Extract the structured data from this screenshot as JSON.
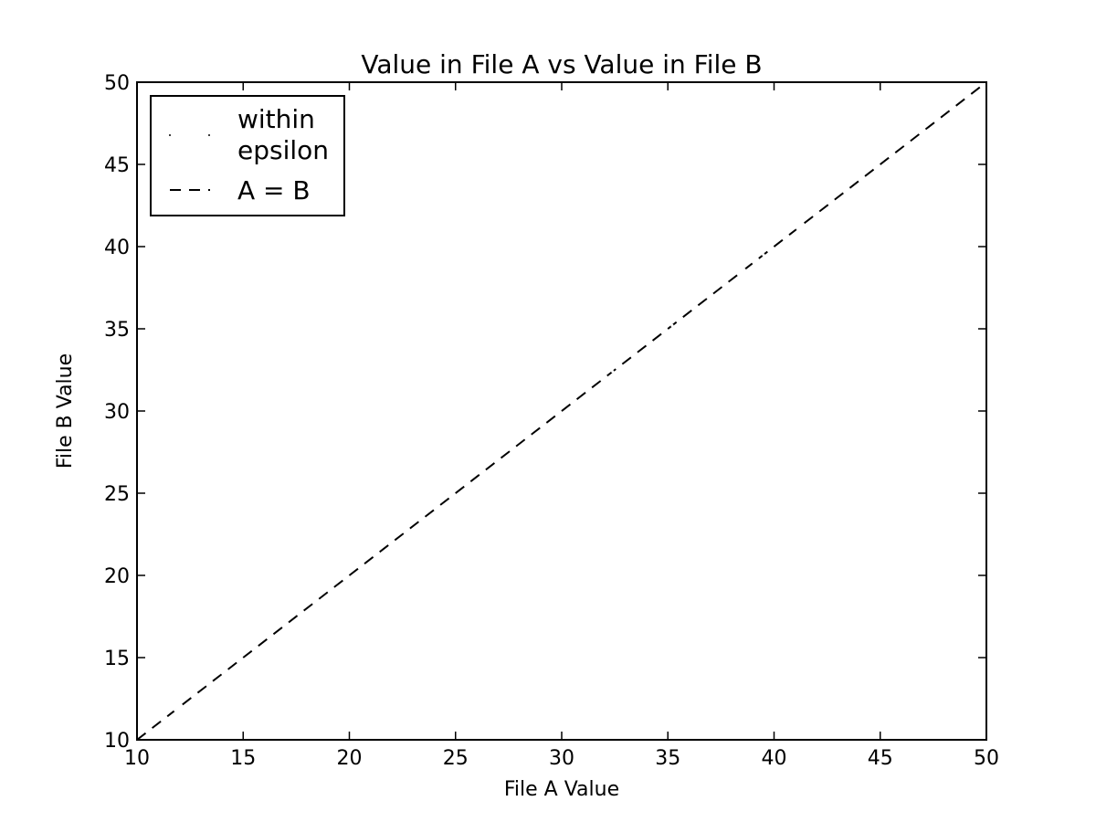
{
  "chart_data": {
    "type": "scatter",
    "title": "Value in File A vs Value in File B",
    "xlabel": "File A Value",
    "ylabel": "File B Value",
    "xlim": [
      10,
      50
    ],
    "ylim": [
      10,
      50
    ],
    "xticks": [
      10,
      15,
      20,
      25,
      30,
      35,
      40,
      45,
      50
    ],
    "yticks": [
      10,
      15,
      20,
      25,
      30,
      35,
      40,
      45,
      50
    ],
    "grid": false,
    "legend_position": "top-left",
    "series": [
      {
        "name": "within epsilon",
        "legend_lines": [
          "within",
          "epsilon"
        ],
        "kind": "points",
        "color": "#ffffff",
        "x": [
          11.2,
          11.8,
          13.5,
          14.9,
          15.6,
          16.3,
          32.4,
          35.2,
          38.6,
          39.5,
          41.1
        ],
        "y": [
          11.2,
          11.8,
          13.5,
          14.9,
          15.6,
          16.3,
          32.4,
          35.2,
          38.6,
          39.5,
          41.1
        ]
      },
      {
        "name": "A = B",
        "kind": "line",
        "style": "dashed",
        "color": "#000000",
        "x": [
          10,
          50
        ],
        "y": [
          10,
          50
        ]
      }
    ]
  }
}
